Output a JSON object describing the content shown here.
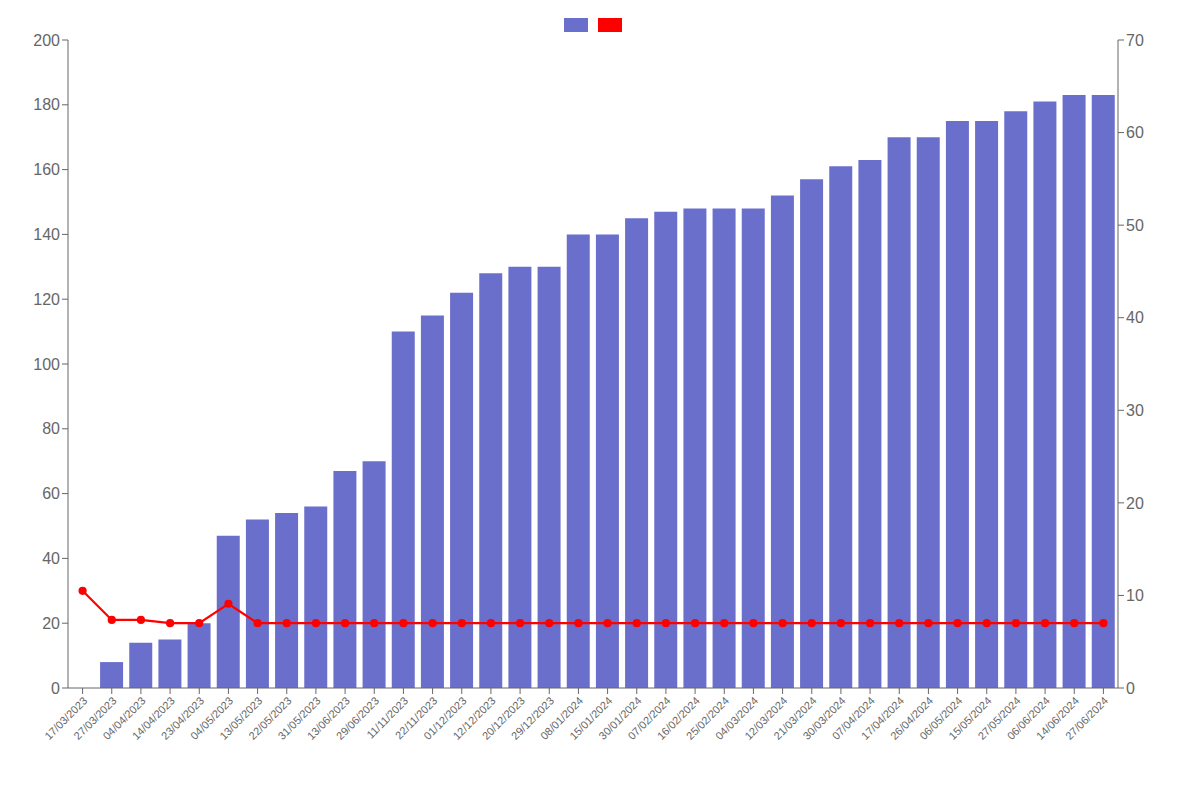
{
  "chart_data": {
    "type": "bar",
    "categories": [
      "17/03/2023",
      "27/03/2023",
      "04/04/2023",
      "14/04/2023",
      "23/04/2023",
      "04/05/2023",
      "13/05/2023",
      "22/05/2023",
      "31/05/2023",
      "13/06/2023",
      "29/06/2023",
      "11/11/2023",
      "22/11/2023",
      "01/12/2023",
      "12/12/2023",
      "20/12/2023",
      "29/12/2023",
      "08/01/2024",
      "15/01/2024",
      "30/01/2024",
      "07/02/2024",
      "16/02/2024",
      "25/02/2024",
      "04/03/2024",
      "12/03/2024",
      "21/03/2024",
      "30/03/2024",
      "07/04/2024",
      "17/04/2024",
      "26/04/2024",
      "06/05/2024",
      "15/05/2024",
      "27/05/2024",
      "06/06/2024",
      "14/06/2024",
      "27/06/2024"
    ],
    "series": [
      {
        "type": "bar",
        "color": "#6b6fcc",
        "values": [
          0,
          8,
          14,
          15,
          20,
          47,
          52,
          54,
          56,
          67,
          70,
          110,
          115,
          122,
          128,
          130,
          130,
          140,
          140,
          145,
          147,
          148,
          148,
          148,
          152,
          157,
          161,
          163,
          170,
          170,
          175,
          175,
          178,
          181,
          183,
          183
        ]
      },
      {
        "type": "line",
        "color": "#ff0000",
        "marker": "circle",
        "values": [
          30,
          21,
          21,
          20,
          20,
          26,
          20,
          20,
          20,
          20,
          20,
          20,
          20,
          20,
          20,
          20,
          20,
          20,
          20,
          20,
          20,
          20,
          20,
          20,
          20,
          20,
          20,
          20,
          20,
          20,
          20,
          20,
          20,
          20,
          20,
          20
        ]
      }
    ],
    "ylim": [
      0,
      200
    ],
    "yticks": [
      0,
      20,
      40,
      60,
      80,
      100,
      120,
      140,
      160,
      180,
      200
    ],
    "y2lim": [
      0,
      70
    ],
    "y2ticks": [
      0,
      10,
      20,
      30,
      40,
      50,
      60,
      70
    ],
    "grid": false,
    "legend": "top"
  }
}
